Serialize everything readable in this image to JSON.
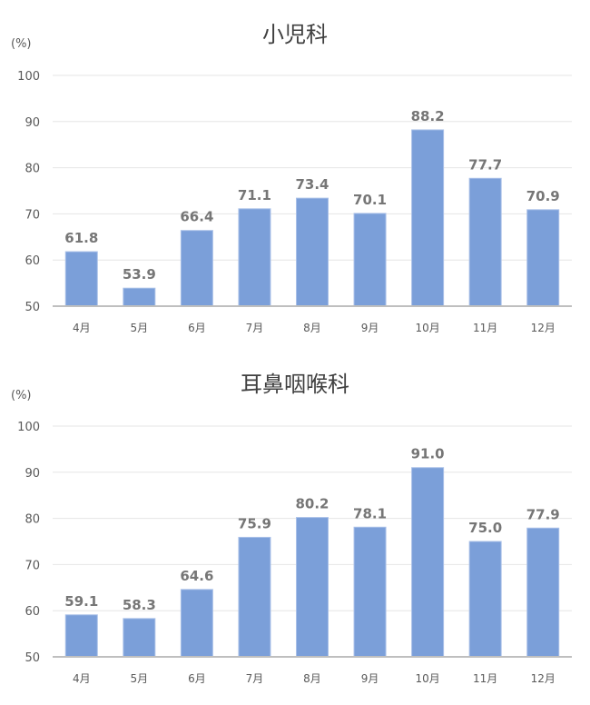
{
  "chart_data": [
    {
      "type": "bar",
      "title": "小児科",
      "unit_label": "(%)",
      "categories": [
        "4月",
        "5月",
        "6月",
        "7月",
        "8月",
        "9月",
        "10月",
        "11月",
        "12月"
      ],
      "values": [
        61.8,
        53.9,
        66.4,
        71.1,
        73.4,
        70.1,
        88.2,
        77.7,
        70.9
      ],
      "data_labels": [
        "61.8",
        "53.9",
        "66.4",
        "71.1",
        "73.4",
        "70.1",
        "88.2",
        "77.7",
        "70.9"
      ],
      "ylim": [
        50,
        100
      ],
      "yticks": [
        "50",
        "60",
        "70",
        "80",
        "90",
        "100"
      ],
      "grid": true,
      "bar_color": "#7b9fd9",
      "xlabel": "",
      "ylabel": ""
    },
    {
      "type": "bar",
      "title": "耳鼻咽喉科",
      "unit_label": "(%)",
      "categories": [
        "4月",
        "5月",
        "6月",
        "7月",
        "8月",
        "9月",
        "10月",
        "11月",
        "12月"
      ],
      "values": [
        59.1,
        58.3,
        64.6,
        75.9,
        80.2,
        78.1,
        91.0,
        75.0,
        77.9
      ],
      "data_labels": [
        "59.1",
        "58.3",
        "64.6",
        "75.9",
        "80.2",
        "78.1",
        "91.0",
        "75.0",
        "77.9"
      ],
      "ylim": [
        50,
        100
      ],
      "yticks": [
        "50",
        "60",
        "70",
        "80",
        "90",
        "100"
      ],
      "grid": true,
      "bar_color": "#7b9fd9",
      "xlabel": "",
      "ylabel": ""
    }
  ]
}
